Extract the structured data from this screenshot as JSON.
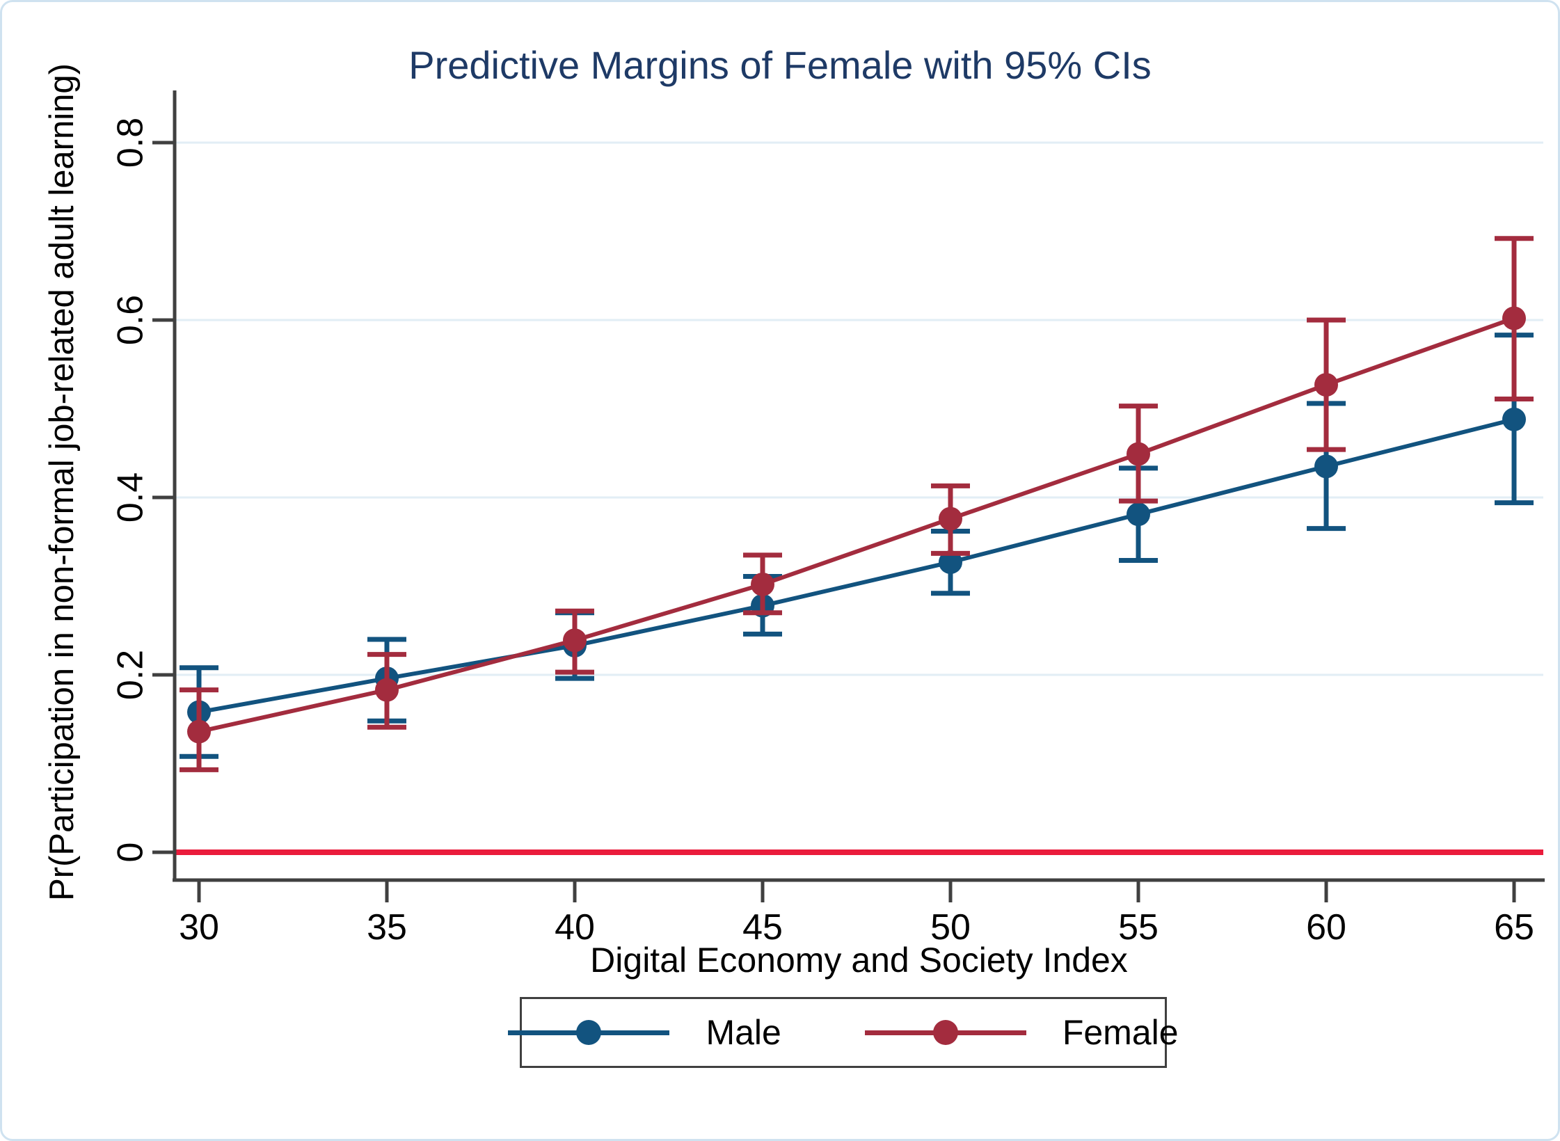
{
  "figure": {
    "border_color": "#cfe2f0",
    "title_color": "#1e3a66",
    "axis_color": "#404040",
    "gridline_color": "#e2eef5"
  },
  "chart_data": {
    "type": "line",
    "title": "Predictive Margins of Female with 95% CIs",
    "xlabel": "Digital Economy and Society Index",
    "ylabel": "Pr(Participation in non-formal job-related adult learning)",
    "x": [
      30,
      35,
      40,
      45,
      50,
      55,
      60,
      65
    ],
    "xtick_labels": [
      "30",
      "35",
      "40",
      "45",
      "50",
      "55",
      "60",
      "65"
    ],
    "yticks": [
      {
        "value": 0.0,
        "label": "0"
      },
      {
        "value": 0.2,
        "label": "0.2"
      },
      {
        "value": 0.4,
        "label": "0.4"
      },
      {
        "value": 0.6,
        "label": "0.6"
      },
      {
        "value": 0.8,
        "label": "0.8"
      }
    ],
    "ylim": [
      -0.06,
      0.84
    ],
    "xlim": [
      29.4,
      65.8
    ],
    "grid": true,
    "legend_position": "bottom",
    "reference_line": {
      "y": 0,
      "color": "#ea1c3c"
    },
    "series": [
      {
        "name": "Male",
        "color": "#12537f",
        "values": [
          0.158,
          0.196,
          0.233,
          0.278,
          0.327,
          0.381,
          0.435,
          0.488
        ],
        "ci_lower": [
          0.108,
          0.148,
          0.196,
          0.246,
          0.292,
          0.329,
          0.365,
          0.394
        ],
        "ci_upper": [
          0.208,
          0.24,
          0.27,
          0.311,
          0.362,
          0.433,
          0.506,
          0.583
        ]
      },
      {
        "name": "Female",
        "color": "#a32c3e",
        "values": [
          0.136,
          0.183,
          0.239,
          0.302,
          0.376,
          0.449,
          0.527,
          0.602
        ],
        "ci_lower": [
          0.093,
          0.141,
          0.203,
          0.27,
          0.337,
          0.396,
          0.454,
          0.511
        ],
        "ci_upper": [
          0.183,
          0.223,
          0.272,
          0.335,
          0.413,
          0.503,
          0.6,
          0.692
        ]
      }
    ]
  },
  "legend": {
    "items": [
      {
        "label": "Male",
        "color": "#12537f"
      },
      {
        "label": "Female",
        "color": "#a32c3e"
      }
    ]
  }
}
